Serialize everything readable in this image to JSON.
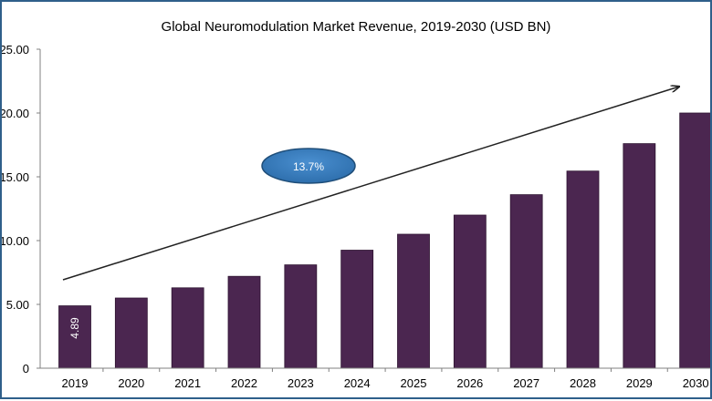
{
  "chart_data": {
    "type": "bar",
    "title": "Global Neuromodulation Market Revenue, 2019-2030 (USD BN)",
    "categories": [
      "2019",
      "2020",
      "2021",
      "2022",
      "2023",
      "2024",
      "2025",
      "2026",
      "2027",
      "2028",
      "2029",
      "2030"
    ],
    "values": [
      4.89,
      5.5,
      6.3,
      7.2,
      8.1,
      9.25,
      10.5,
      12.0,
      13.6,
      15.45,
      17.6,
      20.0
    ],
    "ylim": [
      0,
      25
    ],
    "yticks": [
      "0",
      "5.00",
      "10.00",
      "15.00",
      "20.00",
      "25.00"
    ],
    "data_labels": [
      {
        "index": 0,
        "text": "4.89"
      }
    ],
    "annotation": {
      "text": "13.7%"
    },
    "bar_color": "#4b2650",
    "ellipse_color": "#2e75b6",
    "grid": false,
    "legend": "none"
  }
}
